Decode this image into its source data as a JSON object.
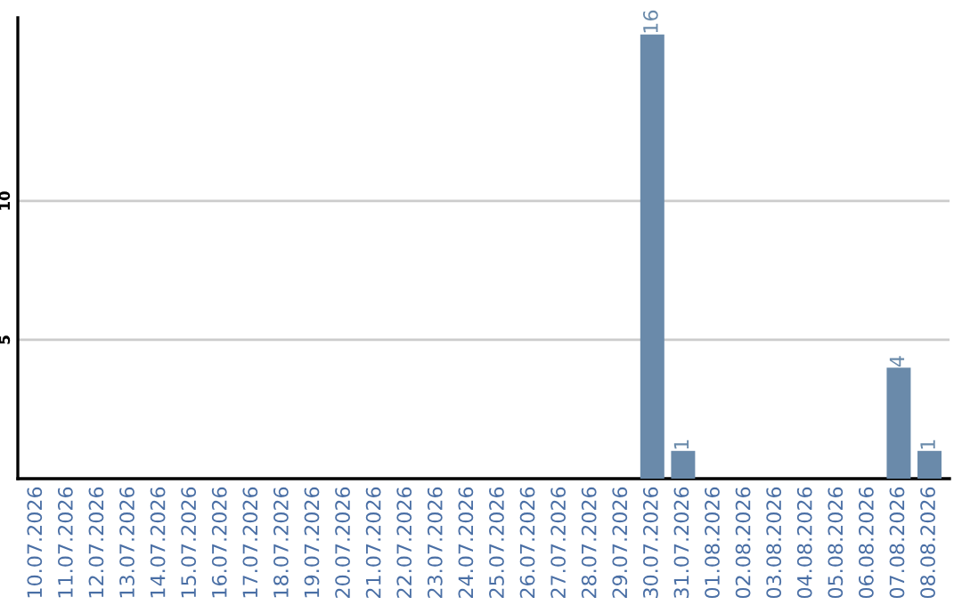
{
  "chart_data": {
    "type": "bar",
    "categories": [
      "10.07.2026",
      "11.07.2026",
      "12.07.2026",
      "13.07.2026",
      "14.07.2026",
      "15.07.2026",
      "16.07.2026",
      "17.07.2026",
      "18.07.2026",
      "19.07.2026",
      "20.07.2026",
      "21.07.2026",
      "22.07.2026",
      "23.07.2026",
      "24.07.2026",
      "25.07.2026",
      "26.07.2026",
      "27.07.2026",
      "28.07.2026",
      "29.07.2026",
      "30.07.2026",
      "31.07.2026",
      "01.08.2026",
      "02.08.2026",
      "03.08.2026",
      "04.08.2026",
      "05.08.2026",
      "06.08.2026",
      "07.08.2026",
      "08.08.2026"
    ],
    "values": [
      0,
      0,
      0,
      0,
      0,
      0,
      0,
      0,
      0,
      0,
      0,
      0,
      0,
      0,
      0,
      0,
      0,
      0,
      0,
      0,
      16,
      1,
      0,
      0,
      0,
      0,
      0,
      0,
      4,
      1
    ],
    "value_labels": [
      null,
      null,
      null,
      null,
      null,
      null,
      null,
      null,
      null,
      null,
      null,
      null,
      null,
      null,
      null,
      null,
      null,
      null,
      null,
      null,
      "16",
      "1",
      null,
      null,
      null,
      null,
      null,
      null,
      "4",
      "1"
    ],
    "color": "#6a8aaa",
    "ylim": [
      0,
      16.6
    ],
    "yticks": [
      5,
      10
    ],
    "grid": "y"
  }
}
